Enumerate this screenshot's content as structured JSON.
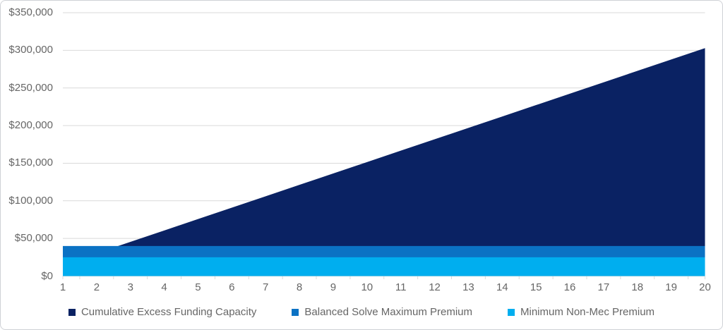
{
  "window": {
    "background_color": "#ffffff",
    "border_color": "#cfd1d6"
  },
  "chart_data": {
    "type": "area",
    "mode": "overlapping",
    "title": "",
    "xlabel": "",
    "ylabel": "",
    "x": [
      1,
      2,
      3,
      4,
      5,
      6,
      7,
      8,
      9,
      10,
      11,
      12,
      13,
      14,
      15,
      16,
      17,
      18,
      19,
      20
    ],
    "x_tick_labels": [
      "1",
      "2",
      "3",
      "4",
      "5",
      "6",
      "7",
      "8",
      "9",
      "10",
      "11",
      "12",
      "13",
      "14",
      "15",
      "16",
      "17",
      "18",
      "19",
      "20"
    ],
    "ylim": [
      0,
      350000
    ],
    "y_tick_values": [
      0,
      50000,
      100000,
      150000,
      200000,
      250000,
      300000,
      350000
    ],
    "y_tick_labels": [
      "$0",
      "$50,000",
      "$100,000",
      "$150,000",
      "$200,000",
      "$250,000",
      "$300,000",
      "$350,000"
    ],
    "grid": "horizontal",
    "gridline_color": "#d9d9d9",
    "axis_text_color": "#666666",
    "legend_position": "bottom-center",
    "series": [
      {
        "name": "Cumulative Excess Funding Capacity",
        "color": "#0a2263",
        "values": [
          15150,
          30300,
          45450,
          60600,
          75750,
          90900,
          106050,
          121200,
          136350,
          151500,
          166650,
          181800,
          196950,
          212100,
          227250,
          242400,
          257550,
          272700,
          287850,
          303000
        ]
      },
      {
        "name": "Balanced Solve Maximum Premium",
        "color": "#0b72c4",
        "values": [
          40000,
          40000,
          40000,
          40000,
          40000,
          40000,
          40000,
          40000,
          40000,
          40000,
          40000,
          40000,
          40000,
          40000,
          40000,
          40000,
          40000,
          40000,
          40000,
          40000
        ]
      },
      {
        "name": "Minimum Non-Mec Premium",
        "color": "#00aeef",
        "values": [
          25000,
          25000,
          25000,
          25000,
          25000,
          25000,
          25000,
          25000,
          25000,
          25000,
          25000,
          25000,
          25000,
          25000,
          25000,
          25000,
          25000,
          25000,
          25000,
          25000
        ]
      }
    ]
  }
}
